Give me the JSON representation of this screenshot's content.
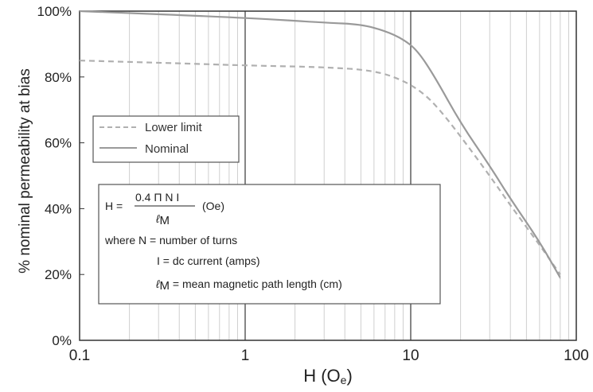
{
  "chart_data": {
    "type": "line",
    "xlabel_main": "H (O",
    "xlabel_sub": "e",
    "xlabel_close": ")",
    "ylabel": "% nominal permeability at bias",
    "xscale": "log",
    "xlim": [
      0.1,
      100
    ],
    "ylim": [
      0,
      100
    ],
    "x_tick_labels": [
      "0.1",
      "1",
      "10",
      "100"
    ],
    "y_tick_labels": [
      "0%",
      "20%",
      "40%",
      "60%",
      "80%",
      "100%"
    ],
    "grid": true,
    "legend_position": "left",
    "series": [
      {
        "name": "Lower limit",
        "style": "dashed",
        "color": "#b0b0b0",
        "points": [
          [
            0.1,
            85
          ],
          [
            0.5,
            84
          ],
          [
            1,
            83.5
          ],
          [
            3,
            83
          ],
          [
            6,
            82
          ],
          [
            9,
            79
          ],
          [
            12,
            75
          ],
          [
            15,
            70
          ],
          [
            20,
            62
          ],
          [
            30,
            50
          ],
          [
            40,
            41
          ],
          [
            60,
            29
          ],
          [
            80,
            20
          ]
        ]
      },
      {
        "name": "Nominal",
        "style": "solid",
        "color": "#9a9a9a",
        "points": [
          [
            0.1,
            100
          ],
          [
            1,
            98
          ],
          [
            3,
            96.5
          ],
          [
            5,
            96
          ],
          [
            7,
            94
          ],
          [
            9,
            91.5
          ],
          [
            11,
            88
          ],
          [
            14,
            80
          ],
          [
            20,
            66
          ],
          [
            30,
            53
          ],
          [
            40,
            43
          ],
          [
            60,
            30
          ],
          [
            80,
            19
          ]
        ]
      }
    ]
  },
  "formula": {
    "lhs": "H =",
    "numerator": "0.4 Π N I",
    "den_symbol": "ℓ",
    "den_sub": "M",
    "unit": "(Oe)",
    "line1": "where N = number of turns",
    "line2": "I = dc current (amps)",
    "line3_symbol": "ℓ",
    "line3_sub": "M",
    "line3_text": " = mean magnetic path length (cm)"
  },
  "colors": {
    "axis": "#333333",
    "major_grid": "#444444",
    "minor_grid": "#cfcfcf",
    "lower_limit": "#b0b0b0",
    "nominal": "#9a9a9a"
  }
}
